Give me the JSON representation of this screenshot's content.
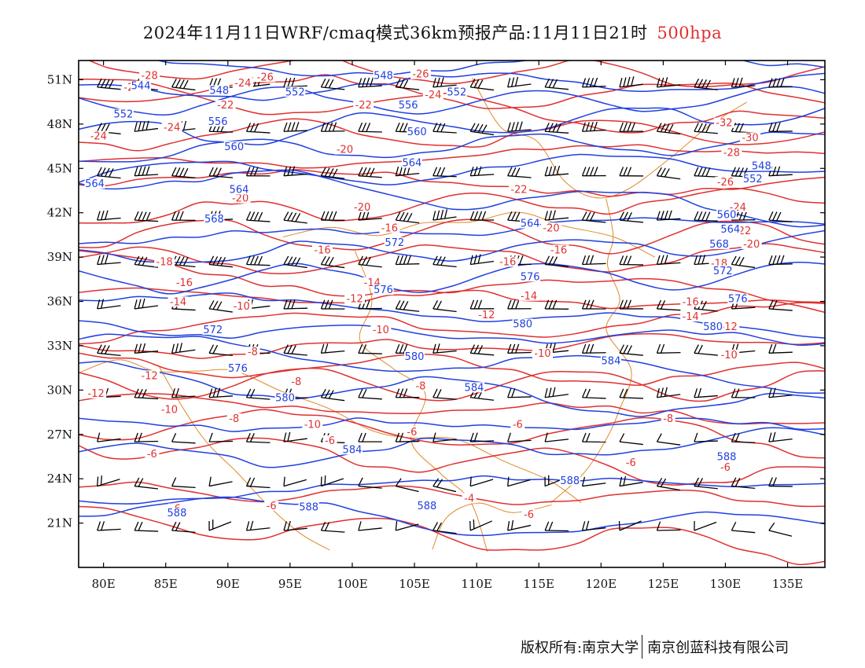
{
  "title": {
    "main": "2024年11月11日WRF/cmaq模式36km预报产品:11月11日21时",
    "level": "500hpa"
  },
  "axes": {
    "lat_ticks": [
      "51N",
      "48N",
      "45N",
      "42N",
      "39N",
      "36N",
      "33N",
      "30N",
      "27N",
      "24N",
      "21N"
    ],
    "lon_ticks": [
      "80E",
      "85E",
      "90E",
      "95E",
      "100E",
      "105E",
      "110E",
      "115E",
      "120E",
      "125E",
      "130E",
      "135E"
    ]
  },
  "colors": {
    "height_contour": "#2040e0",
    "temperature_contour": "#e03030",
    "border": "#e08a2a",
    "wind_barb": "#000000"
  },
  "footer": {
    "copyright": "版权所有:南京大学",
    "company": "南京创蓝科技有限公司"
  },
  "contour_labels": {
    "height": [
      {
        "t": "544",
        "lon": 83,
        "lat": 50.4
      },
      {
        "t": "548",
        "lon": 89.3,
        "lat": 50.1
      },
      {
        "t": "552",
        "lon": 95.4,
        "lat": 50.0
      },
      {
        "t": "548",
        "lon": 102.5,
        "lat": 51.1
      },
      {
        "t": "552",
        "lon": 108.4,
        "lat": 50.0
      },
      {
        "t": "552",
        "lon": 81.6,
        "lat": 48.5
      },
      {
        "t": "556",
        "lon": 89.2,
        "lat": 48.0
      },
      {
        "t": "556",
        "lon": 104.5,
        "lat": 49.1
      },
      {
        "t": "560",
        "lon": 105.2,
        "lat": 47.3
      },
      {
        "t": "560",
        "lon": 90.5,
        "lat": 46.3
      },
      {
        "t": "564",
        "lon": 104.8,
        "lat": 45.2
      },
      {
        "t": "564",
        "lon": 79.3,
        "lat": 43.8
      },
      {
        "t": "564",
        "lon": 90.9,
        "lat": 43.4
      },
      {
        "t": "548",
        "lon": 132.9,
        "lat": 45.0
      },
      {
        "t": "552",
        "lon": 132.2,
        "lat": 44.1
      },
      {
        "t": "568",
        "lon": 88.9,
        "lat": 41.4
      },
      {
        "t": "560",
        "lon": 130.1,
        "lat": 41.7
      },
      {
        "t": "564",
        "lon": 114.3,
        "lat": 41.1
      },
      {
        "t": "564",
        "lon": 130.4,
        "lat": 40.7
      },
      {
        "t": "568",
        "lon": 129.5,
        "lat": 39.7
      },
      {
        "t": "572",
        "lon": 103.4,
        "lat": 39.8
      },
      {
        "t": "572",
        "lon": 129.8,
        "lat": 37.9
      },
      {
        "t": "576",
        "lon": 114.3,
        "lat": 37.5
      },
      {
        "t": "576",
        "lon": 102.5,
        "lat": 36.6
      },
      {
        "t": "576",
        "lon": 131.0,
        "lat": 36.0
      },
      {
        "t": "572",
        "lon": 88.8,
        "lat": 33.9
      },
      {
        "t": "580",
        "lon": 113.7,
        "lat": 34.3
      },
      {
        "t": "580",
        "lon": 129.0,
        "lat": 34.1
      },
      {
        "t": "576",
        "lon": 90.8,
        "lat": 31.3
      },
      {
        "t": "580",
        "lon": 105.0,
        "lat": 32.1
      },
      {
        "t": "584",
        "lon": 120.8,
        "lat": 31.8
      },
      {
        "t": "584",
        "lon": 109.8,
        "lat": 30.0
      },
      {
        "t": "580",
        "lon": 94.6,
        "lat": 29.3
      },
      {
        "t": "584",
        "lon": 100.0,
        "lat": 25.8
      },
      {
        "t": "588",
        "lon": 130.1,
        "lat": 25.3
      },
      {
        "t": "588",
        "lon": 117.5,
        "lat": 23.7
      },
      {
        "t": "588",
        "lon": 85.9,
        "lat": 21.5
      },
      {
        "t": "588",
        "lon": 96.5,
        "lat": 21.9
      },
      {
        "t": "588",
        "lon": 106.0,
        "lat": 22.0
      }
    ],
    "temperature": [
      {
        "t": "-28",
        "lon": 83.7,
        "lat": 51.1
      },
      {
        "t": "-28",
        "lon": 82.3,
        "lat": 50.3
      },
      {
        "t": "-26",
        "lon": 93.0,
        "lat": 51.0
      },
      {
        "t": "-24",
        "lon": 91.2,
        "lat": 50.6
      },
      {
        "t": "-26",
        "lon": 105.5,
        "lat": 51.2
      },
      {
        "t": "-24",
        "lon": 106.5,
        "lat": 49.8
      },
      {
        "t": "-22",
        "lon": 89.8,
        "lat": 49.1
      },
      {
        "t": "-22",
        "lon": 100.9,
        "lat": 49.1
      },
      {
        "t": "-24",
        "lon": 85.5,
        "lat": 47.6
      },
      {
        "t": "-24",
        "lon": 79.6,
        "lat": 47.0
      },
      {
        "t": "-32",
        "lon": 129.9,
        "lat": 47.9
      },
      {
        "t": "-30",
        "lon": 132.0,
        "lat": 46.9
      },
      {
        "t": "-28",
        "lon": 130.5,
        "lat": 45.9
      },
      {
        "t": "-20",
        "lon": 99.4,
        "lat": 46.1
      },
      {
        "t": "-26",
        "lon": 130.0,
        "lat": 43.9
      },
      {
        "t": "-22",
        "lon": 113.4,
        "lat": 43.4
      },
      {
        "t": "-20",
        "lon": 91.0,
        "lat": 42.8
      },
      {
        "t": "-20",
        "lon": 100.8,
        "lat": 42.2
      },
      {
        "t": "-24",
        "lon": 131.0,
        "lat": 42.2
      },
      {
        "t": "-16",
        "lon": 103.0,
        "lat": 40.8
      },
      {
        "t": "-20",
        "lon": 116.0,
        "lat": 40.8
      },
      {
        "t": "-22",
        "lon": 131.4,
        "lat": 40.6
      },
      {
        "t": "-20",
        "lon": 132.1,
        "lat": 39.7
      },
      {
        "t": "-16",
        "lon": 97.6,
        "lat": 39.3
      },
      {
        "t": "-18",
        "lon": 84.9,
        "lat": 38.5
      },
      {
        "t": "-16",
        "lon": 112.5,
        "lat": 38.5
      },
      {
        "t": "-16",
        "lon": 116.6,
        "lat": 39.3
      },
      {
        "t": "-18",
        "lon": 129.5,
        "lat": 38.4
      },
      {
        "t": "-16",
        "lon": 86.5,
        "lat": 37.1
      },
      {
        "t": "-14",
        "lon": 101.6,
        "lat": 37.1
      },
      {
        "t": "-14",
        "lon": 86.0,
        "lat": 35.8
      },
      {
        "t": "-10",
        "lon": 91.1,
        "lat": 35.5
      },
      {
        "t": "-12",
        "lon": 100.2,
        "lat": 36.0
      },
      {
        "t": "-14",
        "lon": 114.2,
        "lat": 36.2
      },
      {
        "t": "-16",
        "lon": 127.2,
        "lat": 35.8
      },
      {
        "t": "-14",
        "lon": 127.2,
        "lat": 34.8
      },
      {
        "t": "-12",
        "lon": 110.8,
        "lat": 34.9
      },
      {
        "t": "-12",
        "lon": 130.3,
        "lat": 34.1
      },
      {
        "t": "-10",
        "lon": 102.3,
        "lat": 33.9
      },
      {
        "t": "-10",
        "lon": 130.3,
        "lat": 32.2
      },
      {
        "t": "-8",
        "lon": 92.0,
        "lat": 32.4
      },
      {
        "t": "-10",
        "lon": 115.3,
        "lat": 32.3
      },
      {
        "t": "-12",
        "lon": 83.7,
        "lat": 30.8
      },
      {
        "t": "-8",
        "lon": 95.5,
        "lat": 30.4
      },
      {
        "t": "-12",
        "lon": 79.4,
        "lat": 29.6
      },
      {
        "t": "-8",
        "lon": 105.5,
        "lat": 30.1
      },
      {
        "t": "-10",
        "lon": 85.3,
        "lat": 28.5
      },
      {
        "t": "-8",
        "lon": 90.5,
        "lat": 27.9
      },
      {
        "t": "-10",
        "lon": 96.8,
        "lat": 27.5
      },
      {
        "t": "-8",
        "lon": 125.4,
        "lat": 27.9
      },
      {
        "t": "-6",
        "lon": 113.3,
        "lat": 27.5
      },
      {
        "t": "-6",
        "lon": 104.8,
        "lat": 27.0
      },
      {
        "t": "-6",
        "lon": 98.2,
        "lat": 26.4
      },
      {
        "t": "-6",
        "lon": 83.9,
        "lat": 25.5
      },
      {
        "t": "-6",
        "lon": 122.4,
        "lat": 24.9
      },
      {
        "t": "-6",
        "lon": 130.0,
        "lat": 24.6
      },
      {
        "t": "-6",
        "lon": 85.8,
        "lat": 21.8
      },
      {
        "t": "-6",
        "lon": 93.5,
        "lat": 22.0
      },
      {
        "t": "-4",
        "lon": 109.4,
        "lat": 22.5
      },
      {
        "t": "-6",
        "lon": 114.2,
        "lat": 21.4
      }
    ]
  }
}
